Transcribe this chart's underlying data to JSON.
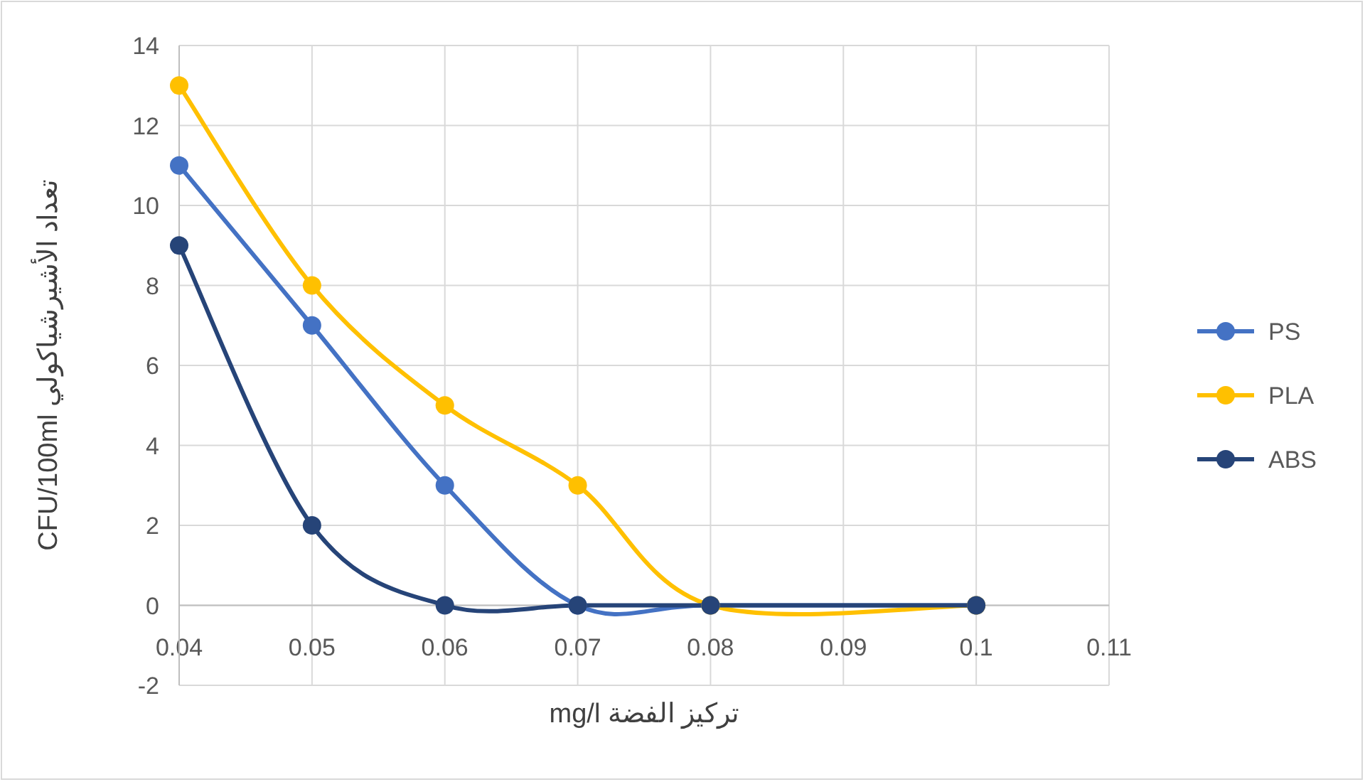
{
  "chart_data": {
    "type": "line",
    "xlabel": "تركيز الفضة mg/l",
    "ylabel": "تعداد الأشيرشياكولي CFU/100ml",
    "x": [
      0.04,
      0.05,
      0.06,
      0.07,
      0.08,
      0.1
    ],
    "series": [
      {
        "name": "PS",
        "color": "#4472c4",
        "values": [
          11,
          7,
          3,
          0,
          0,
          0
        ]
      },
      {
        "name": "PLA",
        "color": "#ffc000",
        "values": [
          13,
          8,
          5,
          3,
          0,
          0
        ]
      },
      {
        "name": "ABS",
        "color": "#264478",
        "values": [
          9,
          2,
          0,
          0,
          0,
          0
        ]
      }
    ],
    "xlim": [
      0.04,
      0.11
    ],
    "xticks": [
      0.04,
      0.05,
      0.06,
      0.07,
      0.08,
      0.09,
      0.1,
      0.11
    ],
    "ylim": [
      -2,
      14
    ],
    "yticks": [
      -2,
      0,
      2,
      4,
      6,
      8,
      10,
      12,
      14
    ],
    "grid": true,
    "legend": "right",
    "marker": "circle",
    "line_style": "solid"
  }
}
